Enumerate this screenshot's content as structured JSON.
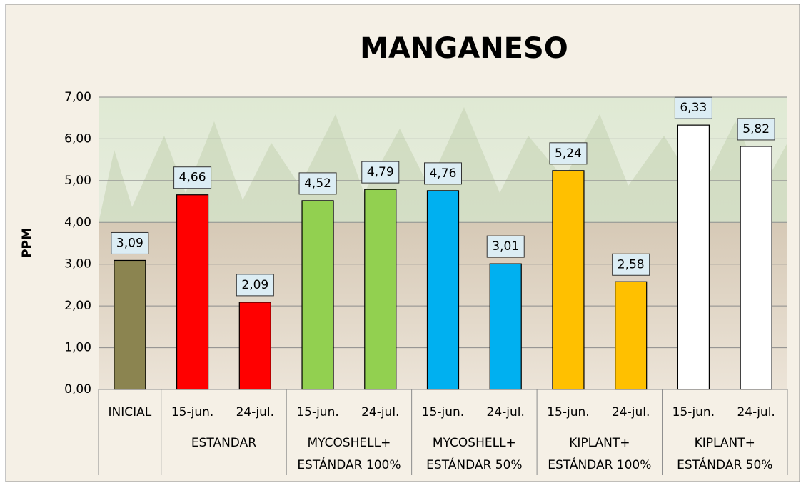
{
  "chart_data": {
    "type": "bar",
    "title": "MANGANESO",
    "y_label": "PPM",
    "ylim": [
      0,
      7
    ],
    "yticks": [
      {
        "value": 0,
        "label": "0,00"
      },
      {
        "value": 1,
        "label": "1,00"
      },
      {
        "value": 2,
        "label": "2,00"
      },
      {
        "value": 3,
        "label": "3,00"
      },
      {
        "value": 4,
        "label": "4,00"
      },
      {
        "value": 5,
        "label": "5,00"
      },
      {
        "value": 6,
        "label": "6,00"
      },
      {
        "value": 7,
        "label": "7,00"
      }
    ],
    "grid": true,
    "groups": [
      {
        "name": null,
        "categories": [
          "INICIAL"
        ],
        "values": [
          3.09
        ],
        "value_labels": [
          "3,09"
        ],
        "colors": [
          "#8b8450"
        ]
      },
      {
        "name": [
          "ESTANDAR"
        ],
        "categories": [
          "15-jun.",
          "24-jul."
        ],
        "values": [
          4.66,
          2.09
        ],
        "value_labels": [
          "4,66",
          "2,09"
        ],
        "colors": [
          "#ff0000",
          "#ff0000"
        ]
      },
      {
        "name": [
          "MYCOSHELL+",
          "ESTÁNDAR 100%"
        ],
        "categories": [
          "15-jun.",
          "24-jul."
        ],
        "values": [
          4.52,
          4.79
        ],
        "value_labels": [
          "4,52",
          "4,79"
        ],
        "colors": [
          "#92d050",
          "#92d050"
        ]
      },
      {
        "name": [
          "MYCOSHELL+",
          "ESTÁNDAR 50%"
        ],
        "categories": [
          "15-jun.",
          "24-jul."
        ],
        "values": [
          4.76,
          3.01
        ],
        "value_labels": [
          "4,76",
          "3,01"
        ],
        "colors": [
          "#00b0f0",
          "#00b0f0"
        ]
      },
      {
        "name": [
          "KIPLANT+",
          "ESTÁNDAR 100%"
        ],
        "categories": [
          "15-jun.",
          "24-jul."
        ],
        "values": [
          5.24,
          2.58
        ],
        "value_labels": [
          "5,24",
          "2,58"
        ],
        "colors": [
          "#ffc000",
          "#ffc000"
        ]
      },
      {
        "name": [
          "KIPLANT+",
          "ESTÁNDAR 50%"
        ],
        "categories": [
          "15-jun.",
          "24-jul."
        ],
        "values": [
          6.33,
          5.82
        ],
        "value_labels": [
          "6,33",
          "5,82"
        ],
        "colors": [
          "#ffffff",
          "#ffffff"
        ]
      }
    ]
  }
}
